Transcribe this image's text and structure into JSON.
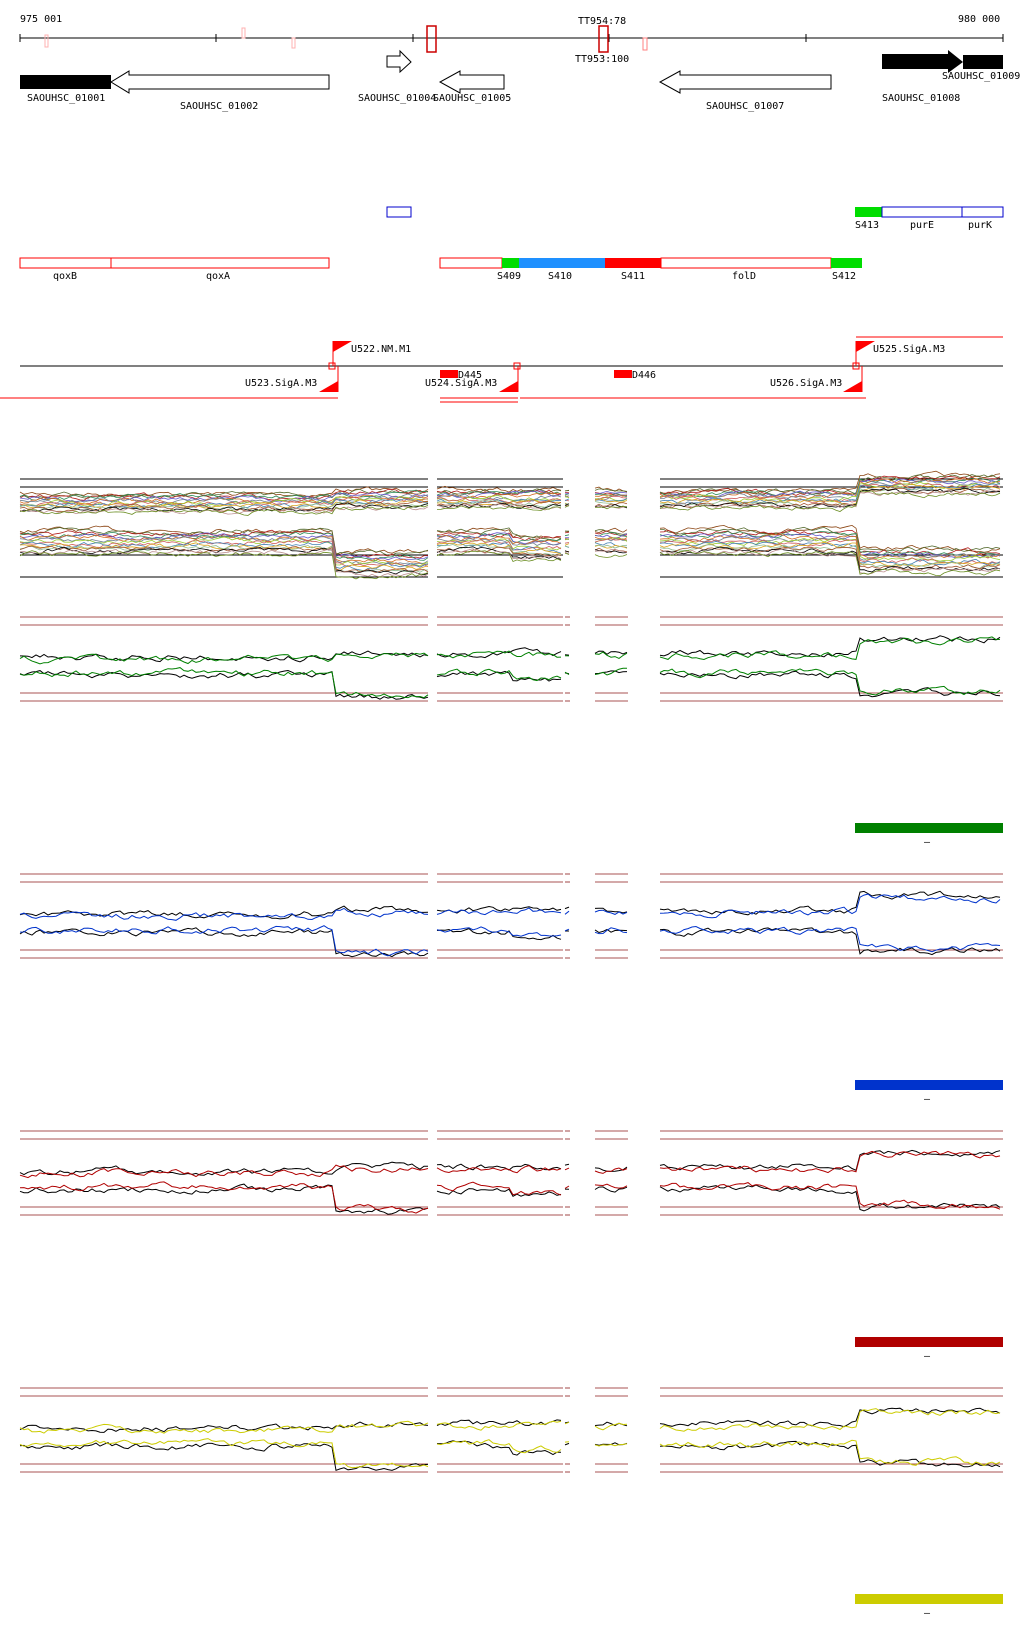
{
  "ruler": {
    "start_label": "975 001",
    "end_label": "980 000"
  },
  "terminators": [
    {
      "label": "TT954:78"
    },
    {
      "label": "TT953:100"
    }
  ],
  "genes": [
    {
      "label": "SAOUHSC_01001",
      "strand": "+",
      "fill": "#000000"
    },
    {
      "label": "SAOUHSC_01002",
      "strand": "-",
      "fill": "#ffffff"
    },
    {
      "label": "SAOUHSC_01004",
      "display": "SAOUHSC_01004",
      "strand": "+",
      "fill": "#ffffff"
    },
    {
      "label": "SAOUHSC_01005",
      "strand": "-",
      "fill": "#ffffff"
    },
    {
      "label": "SAOUHSC_01007",
      "strand": "-",
      "fill": "#ffffff"
    },
    {
      "label": "SAOUHSC_01008",
      "strand": "+",
      "fill": "#000000"
    },
    {
      "label": "SAOUHSC_01009",
      "strand": "+",
      "fill": "#000000"
    }
  ],
  "blue_segments": [
    {
      "label": ""
    },
    {
      "label": "S413"
    },
    {
      "label": "purE"
    },
    {
      "label": "purK"
    }
  ],
  "red_segments": [
    {
      "label": "qoxB"
    },
    {
      "label": "qoxA"
    },
    {
      "label": "S409"
    },
    {
      "label": "S410"
    },
    {
      "label": "S411"
    },
    {
      "label": "folD"
    },
    {
      "label": "S412"
    }
  ],
  "features": [
    {
      "label": "U522.NM.M1"
    },
    {
      "label": "U523.SigA.M3"
    },
    {
      "label": "D445"
    },
    {
      "label": "U524.SigA.M3"
    },
    {
      "label": "D446"
    },
    {
      "label": "U525.SigA.M3"
    },
    {
      "label": "U526.SigA.M3"
    }
  ],
  "expression_panels": [
    {
      "color": "#008000"
    },
    {
      "color": "#0033cc"
    },
    {
      "color": "#b00000"
    },
    {
      "color": "#cccc00"
    }
  ],
  "legend_marks": [
    "–",
    "–",
    "–",
    "–"
  ],
  "colors": {
    "red": "#ff0000",
    "green": "#00dd00",
    "light_blue": "#1e90ff",
    "blue_outline": "#0000cc",
    "threshold": "#8b1a1a",
    "terminator": "#ff8080"
  }
}
